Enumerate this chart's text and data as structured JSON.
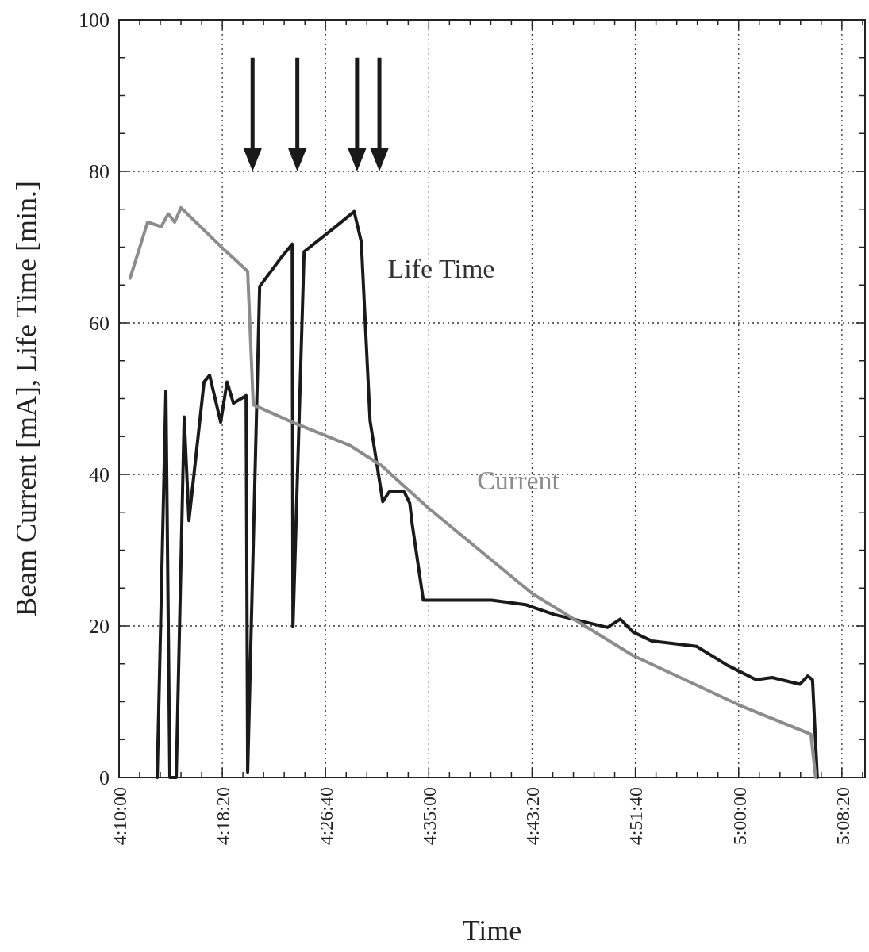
{
  "chart_data": {
    "type": "line",
    "xlabel": "Time",
    "ylabel": "Beam Current [mA], Life Time [min.]",
    "xlim": [
      4.1667,
      5.17
    ],
    "ylim": [
      0,
      100
    ],
    "xticks": [
      {
        "value": 4.1667,
        "label": "4:10:00"
      },
      {
        "value": 4.1944,
        "label": null
      },
      {
        "value": 4.2222,
        "label": null
      },
      {
        "value": 4.25,
        "label": null
      },
      {
        "value": 4.2778,
        "label": null
      },
      {
        "value": 4.3056,
        "label": "4:18:20"
      },
      {
        "value": 4.3333,
        "label": null
      },
      {
        "value": 4.3611,
        "label": null
      },
      {
        "value": 4.3889,
        "label": null
      },
      {
        "value": 4.4167,
        "label": null
      },
      {
        "value": 4.4444,
        "label": "4:26:40"
      },
      {
        "value": 4.4722,
        "label": null
      },
      {
        "value": 4.5,
        "label": null
      },
      {
        "value": 4.5278,
        "label": null
      },
      {
        "value": 4.5556,
        "label": null
      },
      {
        "value": 4.5833,
        "label": "4:35:00"
      },
      {
        "value": 4.6111,
        "label": null
      },
      {
        "value": 4.6389,
        "label": null
      },
      {
        "value": 4.6667,
        "label": null
      },
      {
        "value": 4.6944,
        "label": null
      },
      {
        "value": 4.7222,
        "label": "4:43:20"
      },
      {
        "value": 4.75,
        "label": null
      },
      {
        "value": 4.7778,
        "label": null
      },
      {
        "value": 4.8056,
        "label": null
      },
      {
        "value": 4.8333,
        "label": null
      },
      {
        "value": 4.8611,
        "label": "4:51:40"
      },
      {
        "value": 4.8889,
        "label": null
      },
      {
        "value": 4.9167,
        "label": null
      },
      {
        "value": 4.9444,
        "label": null
      },
      {
        "value": 4.9722,
        "label": null
      },
      {
        "value": 5.0,
        "label": "5:00:00"
      },
      {
        "value": 5.0278,
        "label": null
      },
      {
        "value": 5.0556,
        "label": null
      },
      {
        "value": 5.0833,
        "label": null
      },
      {
        "value": 5.1111,
        "label": null
      },
      {
        "value": 5.1389,
        "label": "5:08:20"
      },
      {
        "value": 5.1667,
        "label": null
      }
    ],
    "yticks": [
      0,
      {
        "value": 5,
        "label": null
      },
      {
        "value": 10,
        "label": null
      },
      {
        "value": 15,
        "label": null
      },
      20,
      {
        "value": 25,
        "label": null
      },
      {
        "value": 30,
        "label": null
      },
      {
        "value": 35,
        "label": null
      },
      40,
      {
        "value": 45,
        "label": null
      },
      {
        "value": 50,
        "label": null
      },
      {
        "value": 55,
        "label": null
      },
      60,
      {
        "value": 65,
        "label": null
      },
      {
        "value": 70,
        "label": null
      },
      {
        "value": 75,
        "label": null
      },
      80,
      {
        "value": 85,
        "label": null
      },
      {
        "value": 90,
        "label": null
      },
      {
        "value": 95,
        "label": null
      },
      100
    ],
    "grid": true,
    "legend": false,
    "line_style": "solid",
    "marker": "none",
    "series": [
      {
        "name": "Life Time",
        "color": "#1a1a1a",
        "x": [
          4.218,
          4.2297,
          4.235,
          4.2436,
          4.2543,
          4.2607,
          4.281,
          4.2885,
          4.3034,
          4.312,
          4.3205,
          4.3376,
          4.3397,
          4.3558,
          4.3846,
          4.3996,
          4.4006,
          4.4156,
          4.4541,
          4.4829,
          4.4925,
          4.5043,
          4.5214,
          4.5299,
          4.5502,
          4.5577,
          4.5609,
          4.5759,
          4.6677,
          4.7137,
          4.7521,
          4.8237,
          4.8408,
          4.8579,
          4.8835,
          4.9434,
          4.985,
          5.0235,
          5.0449,
          5.0823,
          5.0929,
          5.0994,
          5.1058
        ],
        "values": [
          0,
          51,
          0,
          0,
          47.6,
          33.9,
          52.2,
          53.1,
          46.9,
          52.2,
          49.4,
          50.4,
          0.7,
          64.8,
          68.6,
          70.4,
          19.9,
          69.4,
          72.4,
          74.7,
          70.7,
          47.1,
          36.4,
          37.7,
          37.7,
          36.2,
          33.5,
          23.4,
          23.4,
          22.8,
          21.5,
          19.8,
          20.9,
          19.2,
          18,
          17.3,
          14.8,
          12.9,
          13.2,
          12.3,
          13.4,
          12.9,
          0
        ]
      },
      {
        "name": "Current",
        "color": "#8c8c8c",
        "x": [
          4.1816,
          4.2051,
          4.2233,
          4.2329,
          4.2415,
          4.25,
          4.3088,
          4.3397,
          4.3472,
          4.3996,
          4.4776,
          4.5192,
          4.5823,
          4.7222,
          4.8579,
          5.0021,
          5.0972,
          5.1036
        ],
        "values": [
          65.9,
          73.3,
          72.7,
          74.4,
          73.3,
          75.2,
          69.6,
          66.8,
          49.2,
          46.9,
          43.8,
          41.2,
          35.6,
          24.3,
          16.1,
          9.5,
          5.7,
          0
        ]
      }
    ]
  }
}
